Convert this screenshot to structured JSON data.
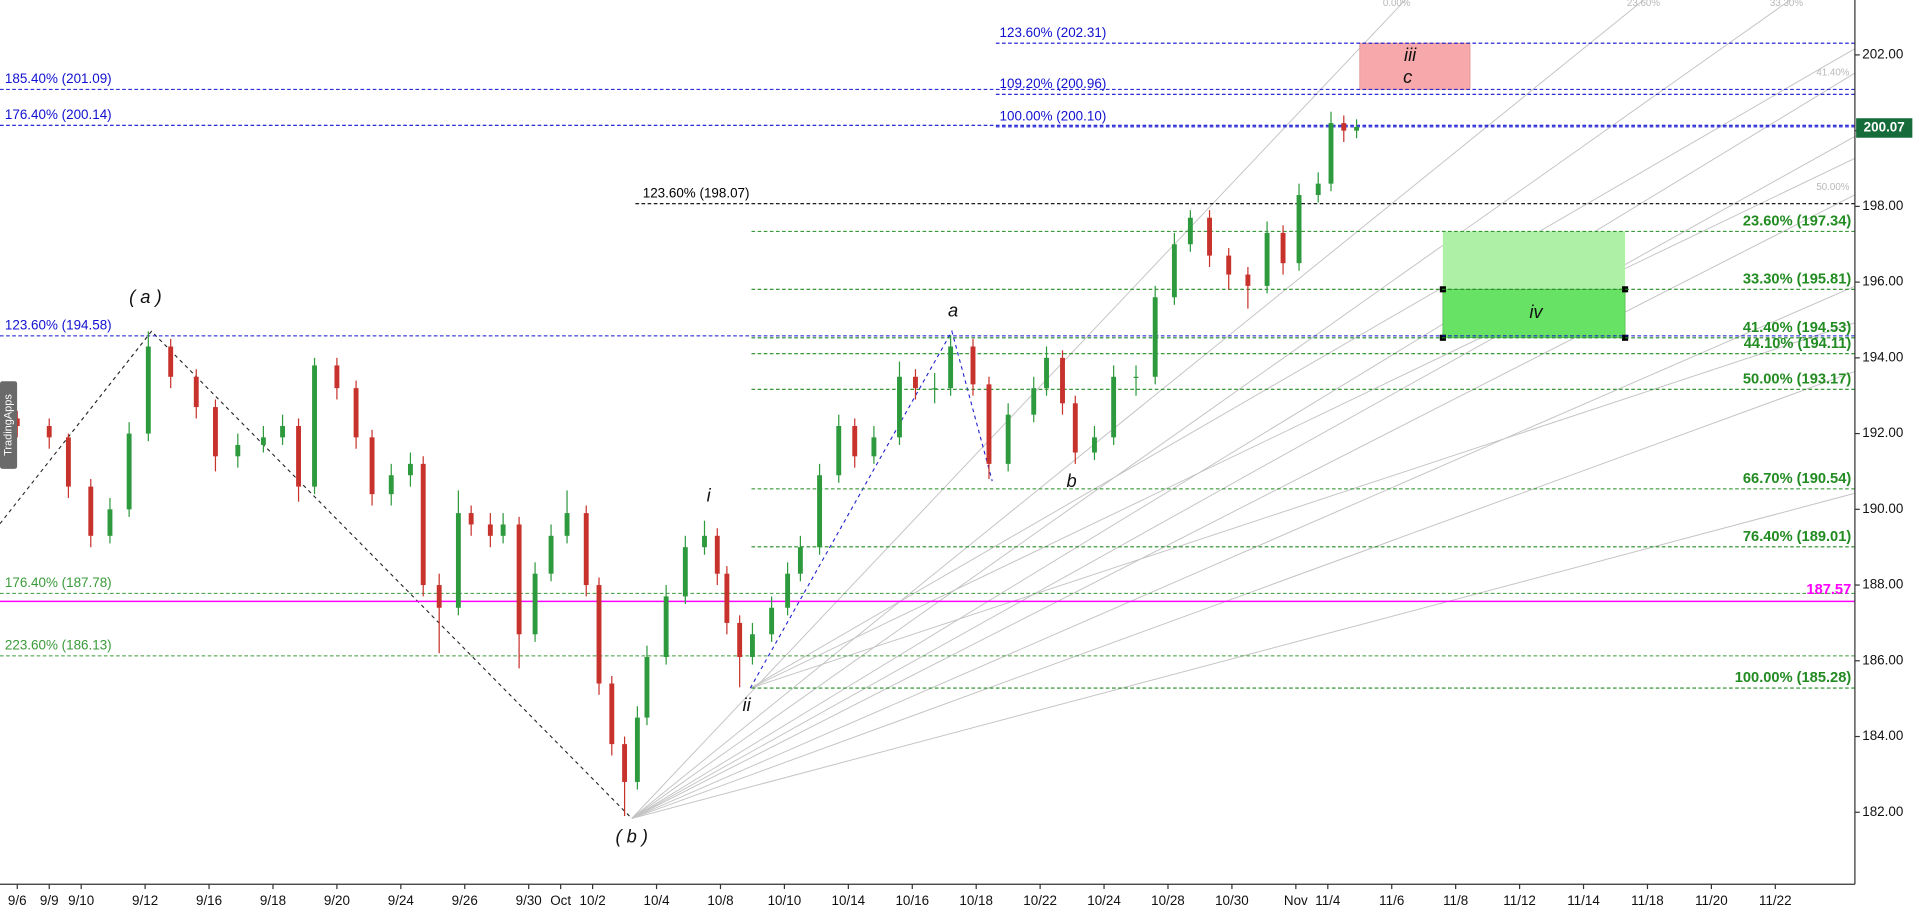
{
  "chart_data": {
    "type": "candlestick",
    "watermark": "TradingApps",
    "up_color": "#2e9a3e",
    "down_color": "#c8322c",
    "xlim": [
      -0.54,
      57.49
    ],
    "ylim": [
      180.1,
      203.45
    ],
    "xticks": [
      {
        "value": 0,
        "label": "9/6"
      },
      {
        "value": 1,
        "label": "9/9"
      },
      {
        "value": 2,
        "label": "9/10"
      },
      {
        "value": 4,
        "label": "9/12"
      },
      {
        "value": 6,
        "label": "9/16"
      },
      {
        "value": 8,
        "label": "9/18"
      },
      {
        "value": 10,
        "label": "9/20"
      },
      {
        "value": 12,
        "label": "9/24"
      },
      {
        "value": 14,
        "label": "9/26"
      },
      {
        "value": 16,
        "label": "9/30"
      },
      {
        "value": 17,
        "label": "Oct"
      },
      {
        "value": 18,
        "label": "10/2"
      },
      {
        "value": 20,
        "label": "10/4"
      },
      {
        "value": 22,
        "label": "10/8"
      },
      {
        "value": 24,
        "label": "10/10"
      },
      {
        "value": 26,
        "label": "10/14"
      },
      {
        "value": 28,
        "label": "10/16"
      },
      {
        "value": 30,
        "label": "10/18"
      },
      {
        "value": 32,
        "label": "10/22"
      },
      {
        "value": 34,
        "label": "10/24"
      },
      {
        "value": 36,
        "label": "10/28"
      },
      {
        "value": 38,
        "label": "10/30"
      },
      {
        "value": 40,
        "label": "Nov"
      },
      {
        "value": 41,
        "label": "11/4"
      },
      {
        "value": 43,
        "label": "11/6"
      },
      {
        "value": 45,
        "label": "11/8"
      },
      {
        "value": 47,
        "label": "11/12"
      },
      {
        "value": 49,
        "label": "11/14"
      },
      {
        "value": 51,
        "label": "11/18"
      },
      {
        "value": 53,
        "label": "11/20"
      },
      {
        "value": 55,
        "label": "11/22"
      }
    ],
    "yticks": [
      {
        "value": 182,
        "label": "182.00"
      },
      {
        "value": 184,
        "label": "184.00"
      },
      {
        "value": 186,
        "label": "186.00"
      },
      {
        "value": 188,
        "label": "188.00"
      },
      {
        "value": 190,
        "label": "190.00"
      },
      {
        "value": 192,
        "label": "192.00"
      },
      {
        "value": 194,
        "label": "194.00"
      },
      {
        "value": 196,
        "label": "196.00"
      },
      {
        "value": 198,
        "label": "198.00"
      },
      {
        "value": 200,
        "label": "200.00"
      },
      {
        "value": 202,
        "label": "202.00"
      }
    ],
    "x": [
      0,
      1,
      1.6,
      2.3,
      2.9,
      3.5,
      4.1,
      4.8,
      5.6,
      6.2,
      6.9,
      7.7,
      8.3,
      8.8,
      9.3,
      10,
      10.6,
      11.1,
      11.7,
      12.3,
      12.7,
      13.2,
      13.8,
      14.2,
      14.8,
      15.2,
      15.7,
      16.2,
      16.7,
      17.2,
      17.8,
      18.2,
      18.6,
      19,
      19.4,
      19.7,
      20.3,
      20.9,
      21.5,
      21.9,
      22.2,
      22.6,
      23,
      23.6,
      24.1,
      24.5,
      25.1,
      25.7,
      26.2,
      26.8,
      27.6,
      28.1,
      28.7,
      29.2,
      29.9,
      30.4,
      31,
      31.8,
      32.2,
      32.7,
      33.1,
      33.7,
      34.3,
      35,
      35.6,
      36.2,
      36.7,
      37.3,
      37.9,
      38.5,
      39.1,
      39.6,
      40.1,
      40.7,
      41.1,
      41.5,
      41.9
    ],
    "open": [
      192.4,
      192.2,
      191.9,
      190.6,
      189.3,
      190.0,
      192.0,
      194.3,
      193.5,
      192.7,
      191.4,
      191.7,
      191.9,
      192.2,
      190.6,
      193.8,
      193.2,
      191.9,
      190.4,
      190.9,
      191.2,
      188.0,
      187.4,
      189.9,
      189.6,
      189.3,
      189.6,
      186.7,
      188.3,
      189.3,
      189.9,
      188.0,
      185.4,
      183.8,
      182.8,
      184.5,
      186.1,
      187.7,
      189.0,
      189.3,
      188.3,
      187.0,
      186.1,
      186.7,
      187.4,
      188.3,
      189.0,
      190.9,
      192.2,
      191.4,
      191.9,
      193.5,
      193.2,
      193.2,
      194.3,
      193.3,
      191.2,
      192.5,
      193.2,
      194.0,
      192.8,
      191.5,
      191.9,
      193.5,
      193.5,
      195.6,
      197.0,
      197.7,
      196.7,
      196.2,
      195.9,
      197.3,
      196.5,
      198.3,
      198.6,
      200.2,
      200.0
    ],
    "high": [
      192.6,
      192.4,
      192.0,
      190.8,
      190.3,
      192.3,
      194.7,
      194.5,
      193.7,
      192.9,
      192.0,
      192.2,
      192.5,
      192.4,
      194.0,
      194.0,
      193.4,
      192.1,
      191.2,
      191.5,
      191.4,
      188.3,
      190.5,
      190.1,
      189.9,
      189.9,
      189.8,
      188.6,
      189.6,
      190.5,
      190.1,
      188.2,
      185.6,
      184.0,
      184.8,
      186.4,
      188.0,
      189.3,
      189.7,
      189.5,
      188.5,
      187.2,
      187.0,
      187.7,
      188.6,
      189.3,
      191.2,
      192.5,
      192.4,
      192.2,
      193.9,
      193.7,
      193.6,
      194.6,
      194.5,
      193.5,
      192.8,
      193.5,
      194.3,
      194.2,
      193.0,
      192.2,
      193.8,
      193.8,
      195.9,
      197.3,
      197.9,
      197.9,
      196.9,
      196.4,
      197.6,
      197.5,
      198.6,
      198.9,
      200.5,
      200.4,
      200.3
    ],
    "low": [
      191.9,
      191.6,
      190.3,
      189.0,
      189.1,
      189.8,
      191.8,
      193.2,
      192.4,
      191.0,
      191.1,
      191.5,
      191.7,
      190.2,
      190.4,
      192.9,
      191.6,
      190.1,
      190.1,
      190.6,
      187.7,
      186.2,
      187.2,
      189.3,
      189.0,
      189.1,
      185.8,
      186.5,
      188.1,
      189.1,
      187.7,
      185.1,
      183.5,
      181.9,
      182.6,
      184.3,
      185.9,
      187.5,
      188.8,
      188.0,
      186.7,
      185.3,
      185.9,
      186.5,
      187.2,
      188.1,
      188.8,
      190.7,
      191.1,
      191.2,
      191.7,
      192.9,
      192.8,
      193.0,
      193.0,
      190.8,
      191.0,
      192.3,
      193.0,
      192.5,
      191.2,
      191.3,
      191.7,
      193.0,
      193.3,
      195.4,
      196.8,
      196.4,
      195.8,
      195.3,
      195.7,
      196.2,
      196.3,
      198.1,
      198.4,
      199.7,
      199.8
    ],
    "close": [
      192.2,
      191.9,
      190.6,
      189.3,
      190.0,
      192.0,
      194.3,
      193.5,
      192.7,
      191.4,
      191.7,
      191.9,
      192.2,
      190.6,
      193.8,
      193.2,
      191.9,
      190.4,
      190.9,
      191.2,
      188.0,
      187.4,
      189.9,
      189.6,
      189.3,
      189.6,
      186.7,
      188.3,
      189.3,
      189.9,
      188.0,
      185.4,
      183.8,
      182.8,
      184.5,
      186.1,
      187.7,
      189.0,
      189.3,
      188.3,
      187.0,
      186.1,
      186.7,
      187.4,
      188.3,
      189.0,
      190.9,
      192.2,
      191.4,
      191.9,
      193.5,
      193.2,
      193.2,
      194.3,
      193.3,
      191.2,
      192.5,
      193.2,
      194.0,
      192.8,
      191.5,
      191.9,
      193.5,
      193.5,
      195.6,
      197.0,
      197.7,
      196.7,
      196.2,
      195.9,
      197.3,
      196.5,
      198.3,
      198.6,
      200.2,
      200.0,
      200.1
    ],
    "levels_left": [
      {
        "label": "185.40% (201.09)",
        "value": 201.09,
        "color": "#1010d0"
      },
      {
        "label": "176.40% (200.14)",
        "value": 200.14,
        "color": "#1010d0"
      },
      {
        "label": "123.60% (194.58)",
        "value": 194.58,
        "color": "#1010d0"
      },
      {
        "label": "176.40% (187.78)",
        "value": 187.78,
        "color": "#3a9a3a"
      },
      {
        "label": "223.60% (186.13)",
        "value": 186.13,
        "color": "#3a9a3a"
      }
    ],
    "levels_upper": [
      {
        "label": "123.60% (202.31)",
        "value": 202.31,
        "color": "#1010d0"
      },
      {
        "label": "109.20% (200.96)",
        "value": 200.96,
        "color": "#1010d0"
      },
      {
        "label": "100.00% (200.10)",
        "value": 200.1,
        "color": "#1010d0"
      }
    ],
    "level_mid": {
      "label": "123.60% (198.07)",
      "value": 198.07,
      "color": "#000000"
    },
    "levels_right": [
      {
        "label": "23.60% (197.34)",
        "value": 197.34,
        "color": "#228b22"
      },
      {
        "label": "33.30% (195.81)",
        "value": 195.81,
        "color": "#228b22"
      },
      {
        "label": "41.40% (194.53)",
        "value": 194.53,
        "color": "#228b22"
      },
      {
        "label": "44.10% (194.11)",
        "value": 194.11,
        "color": "#228b22"
      },
      {
        "label": "50.00% (193.17)",
        "value": 193.17,
        "color": "#228b22"
      },
      {
        "label": "66.70% (190.54)",
        "value": 190.54,
        "color": "#228b22"
      },
      {
        "label": "76.40% (189.01)",
        "value": 189.01,
        "color": "#228b22"
      },
      {
        "label": "100.00% (185.28)",
        "value": 185.28,
        "color": "#228b22"
      }
    ],
    "marker_line": {
      "value": 187.57,
      "color": "#ff00ff"
    },
    "last_price": 200.07,
    "last_price_color": "#156b3a",
    "wave_labels": [
      "( a )",
      "( b )",
      "i",
      "ii",
      "a",
      "b",
      "iii",
      "c",
      "iv"
    ],
    "fan_labels": [
      "0.00%",
      "23.60%",
      "33.30%",
      "41.40%",
      "50.00%"
    ]
  }
}
